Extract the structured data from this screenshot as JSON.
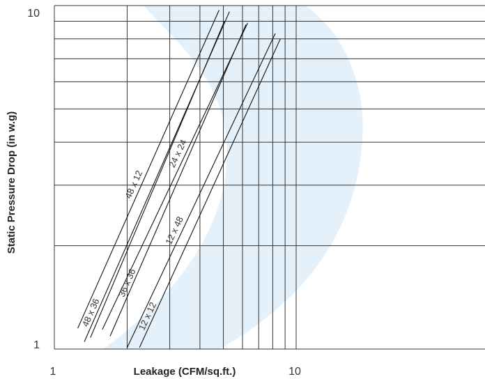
{
  "chart_data": {
    "type": "line",
    "title": "",
    "xlabel": "Leakage (CFM/sq.ft.)",
    "ylabel": "Static Pressure Drop (in w.g)",
    "x_scale": "log",
    "y_scale": "log",
    "xlim": [
      1,
      40
    ],
    "ylim": [
      1,
      10
    ],
    "x_ticks": [
      "1",
      "10"
    ],
    "y_ticks": [
      "1",
      "10"
    ],
    "grid": true,
    "legend": "none",
    "background_color": "#e4f0fa",
    "line_color": "#111111",
    "series": [
      {
        "name": "48 x 12",
        "points": [
          [
            1.25,
            1.15
          ],
          [
            4.8,
            9.7
          ]
        ]
      },
      {
        "name": "48 x 36",
        "points": [
          [
            1.33,
            1.05
          ],
          [
            5.3,
            9.6
          ]
        ]
      },
      {
        "name": "",
        "points": [
          [
            1.41,
            1.08
          ],
          [
            5.05,
            9.0
          ]
        ]
      },
      {
        "name": "36 x 36",
        "points": [
          [
            1.7,
            1.09
          ],
          [
            6.2,
            8.8
          ]
        ]
      },
      {
        "name": "24 x 24",
        "points": [
          [
            1.58,
            1.14
          ],
          [
            6.3,
            8.9
          ]
        ]
      },
      {
        "name": "12 x 48",
        "points": [
          [
            2.0,
            1.01
          ],
          [
            8.2,
            8.3
          ]
        ]
      },
      {
        "name": "12 x 12",
        "points": [
          [
            2.25,
            1.01
          ],
          [
            8.6,
            8.0
          ]
        ]
      }
    ]
  }
}
